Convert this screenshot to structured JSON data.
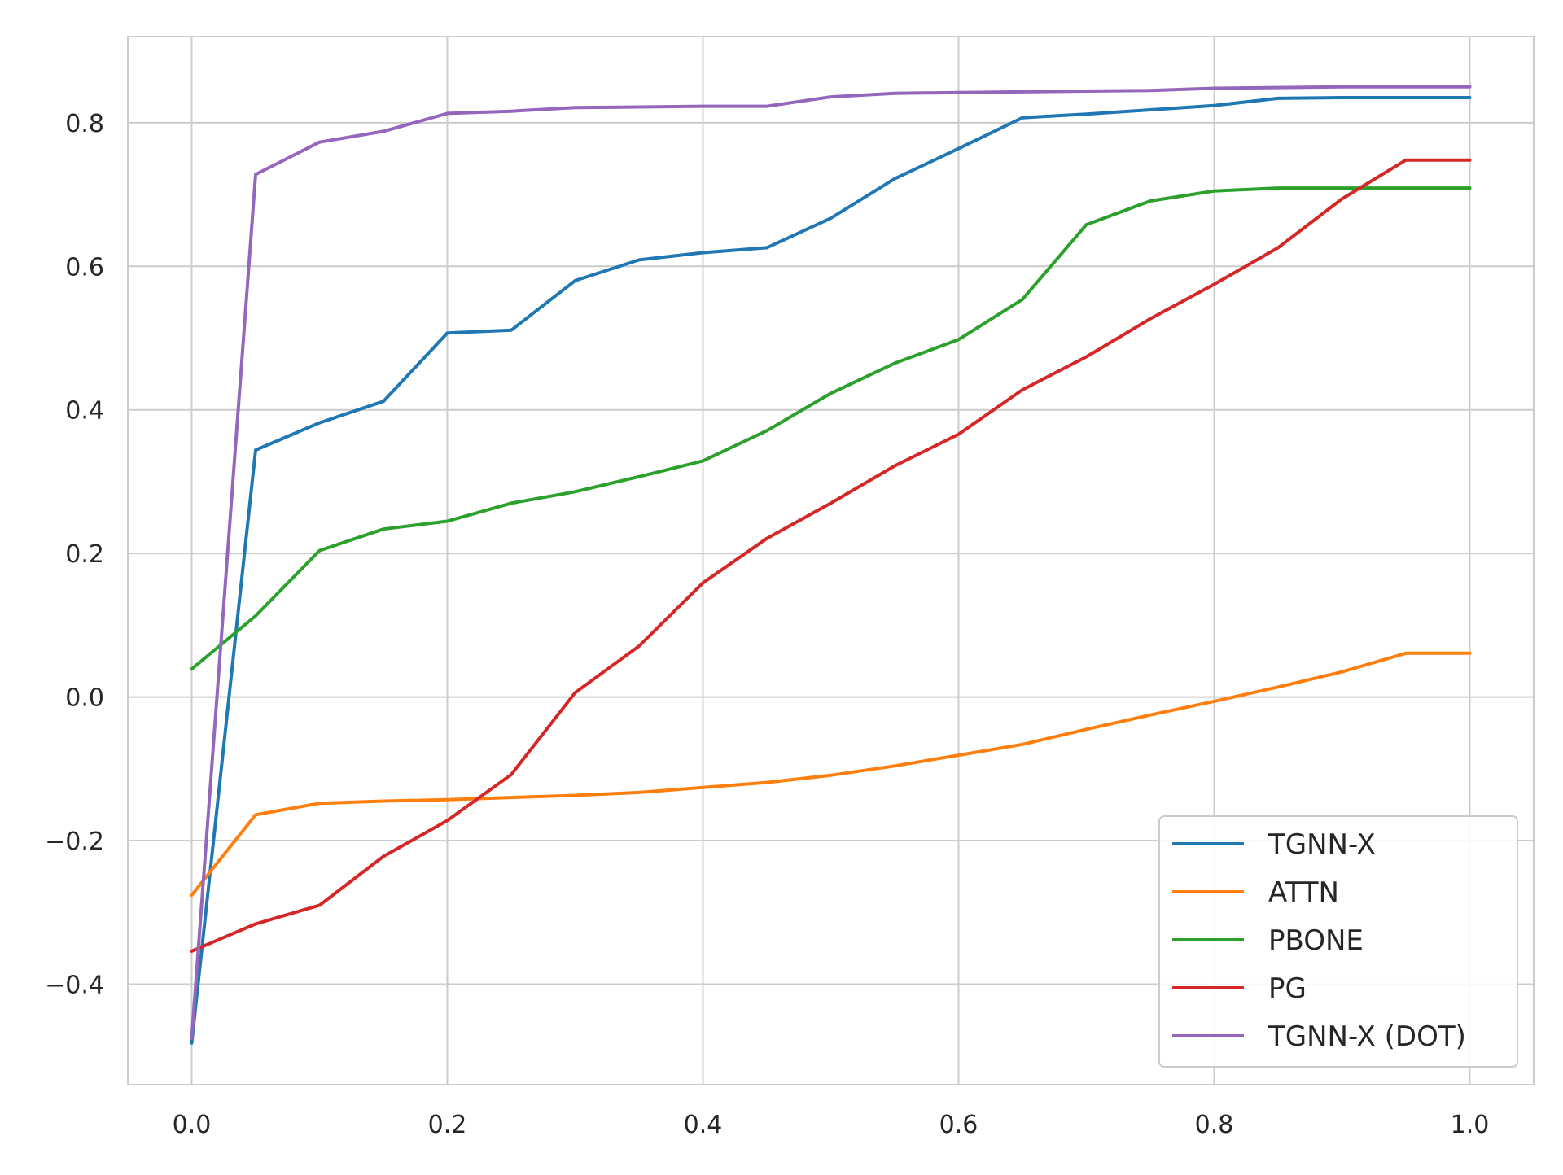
{
  "chart_data": {
    "type": "line",
    "title": "",
    "xlabel": "",
    "ylabel": "",
    "xlim": [
      -0.05,
      1.05
    ],
    "ylim": [
      -0.54,
      0.92
    ],
    "xticks": [
      0.0,
      0.2,
      0.4,
      0.6,
      0.8,
      1.0
    ],
    "xtick_labels": [
      "0.0",
      "0.2",
      "0.4",
      "0.6",
      "0.8",
      "1.0"
    ],
    "yticks": [
      -0.4,
      -0.2,
      0.0,
      0.2,
      0.4,
      0.6,
      0.8
    ],
    "ytick_labels": [
      "−0.4",
      "−0.2",
      "0.0",
      "0.2",
      "0.4",
      "0.6",
      "0.8"
    ],
    "grid": true,
    "legend_position": "lower-right",
    "x": [
      0.0,
      0.05,
      0.1,
      0.15,
      0.2,
      0.25,
      0.3,
      0.35,
      0.4,
      0.45,
      0.5,
      0.55,
      0.6,
      0.65,
      0.7,
      0.75,
      0.8,
      0.85,
      0.9,
      0.95,
      1.0
    ],
    "series": [
      {
        "name": "TGNN-X",
        "color": "#1f77b4",
        "values": [
          -0.482,
          0.344,
          0.382,
          0.412,
          0.507,
          0.511,
          0.58,
          0.609,
          0.619,
          0.626,
          0.667,
          0.722,
          0.764,
          0.807,
          0.812,
          0.818,
          0.824,
          0.834,
          0.835,
          0.835,
          0.835
        ]
      },
      {
        "name": "ATTN",
        "color": "#ff7f0e",
        "values": [
          -0.276,
          -0.164,
          -0.148,
          -0.145,
          -0.143,
          -0.14,
          -0.137,
          -0.133,
          -0.126,
          -0.119,
          -0.109,
          -0.096,
          -0.081,
          -0.066,
          -0.045,
          -0.025,
          -0.006,
          0.014,
          0.035,
          0.061,
          0.061
        ]
      },
      {
        "name": "PBONE",
        "color": "#2ca02c",
        "values": [
          0.039,
          0.113,
          0.204,
          0.234,
          0.245,
          0.27,
          0.286,
          0.307,
          0.329,
          0.371,
          0.423,
          0.465,
          0.498,
          0.554,
          0.658,
          0.691,
          0.705,
          0.709,
          0.709,
          0.709,
          0.709
        ]
      },
      {
        "name": "PG",
        "color": "#d62728",
        "values": [
          -0.354,
          -0.316,
          -0.29,
          -0.222,
          -0.172,
          -0.108,
          0.006,
          0.071,
          0.159,
          0.221,
          0.27,
          0.322,
          0.366,
          0.428,
          0.474,
          0.527,
          0.575,
          0.626,
          0.694,
          0.748,
          0.748
        ]
      },
      {
        "name": "TGNN-X (DOT)",
        "color": "#9467bd",
        "values": [
          -0.475,
          0.728,
          0.773,
          0.788,
          0.813,
          0.816,
          0.821,
          0.822,
          0.823,
          0.823,
          0.836,
          0.841,
          0.842,
          0.843,
          0.844,
          0.845,
          0.848,
          0.849,
          0.85,
          0.85,
          0.85
        ]
      }
    ]
  }
}
